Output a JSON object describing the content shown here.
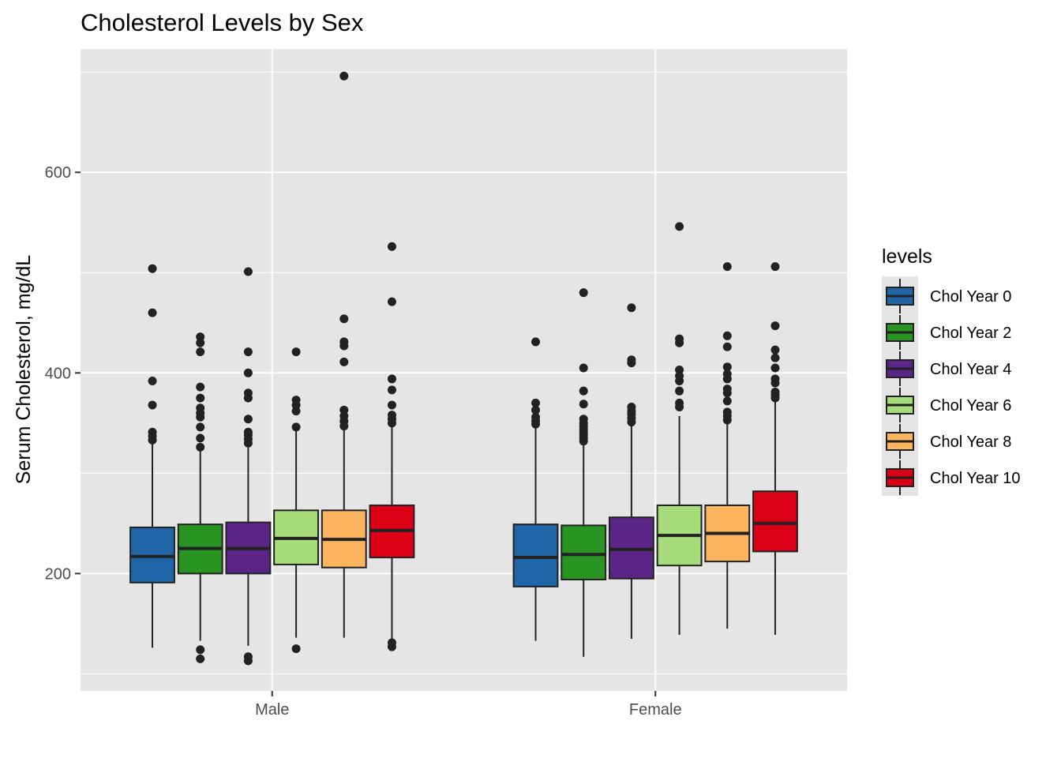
{
  "chart_data": {
    "type": "boxplot",
    "title": "Cholesterol Levels by Sex",
    "xlabel": "",
    "ylabel": "Serum Cholesterol, mg/dL",
    "ylim": [
      83,
      723
    ],
    "yticks": [
      200,
      400,
      600
    ],
    "y_minor_gridlines": [
      100,
      300,
      500,
      700
    ],
    "grid": true,
    "categories": [
      "Male",
      "Female"
    ],
    "legend": {
      "title": "levels",
      "position": "right"
    },
    "series": [
      {
        "name": "Chol Year 0",
        "color": "#1F65A8",
        "boxes": [
          {
            "whisker_low": 126,
            "q1": 191,
            "median": 217,
            "q3": 246,
            "whisker_high": 330,
            "outliers": [
              333,
              337,
              341,
              368,
              392,
              460,
              504
            ]
          },
          {
            "whisker_low": 133,
            "q1": 187,
            "median": 216,
            "q3": 249,
            "whisker_high": 346,
            "outliers": [
              349,
              352,
              356,
              363,
              370,
              431
            ]
          }
        ]
      },
      {
        "name": "Chol Year 2",
        "color": "#2A9422",
        "boxes": [
          {
            "whisker_low": 133,
            "q1": 200,
            "median": 225,
            "q3": 249,
            "whisker_high": 322,
            "outliers": [
              115,
              124,
              326,
              335,
              346,
              356,
              360,
              365,
              375,
              386,
              421,
              430,
              436
            ]
          },
          {
            "whisker_low": 117,
            "q1": 194,
            "median": 219,
            "q3": 248,
            "whisker_high": 329,
            "outliers": [
              332,
              335,
              338,
              341,
              344,
              347,
              350,
              354,
              369,
              382,
              405,
              480
            ]
          }
        ]
      },
      {
        "name": "Chol Year 4",
        "color": "#5A2587",
        "boxes": [
          {
            "whisker_low": 128,
            "q1": 200,
            "median": 225,
            "q3": 251,
            "whisker_high": 328,
            "outliers": [
              113,
              117,
              330,
              334,
              338,
              341,
              354,
              375,
              380,
              400,
              421,
              501
            ]
          },
          {
            "whisker_low": 135,
            "q1": 195,
            "median": 224,
            "q3": 256,
            "whisker_high": 348,
            "outliers": [
              351,
              355,
              359,
              362,
              366,
              410,
              413,
              465
            ]
          }
        ]
      },
      {
        "name": "Chol Year 6",
        "color": "#A6DC7A",
        "boxes": [
          {
            "whisker_low": 136,
            "q1": 209,
            "median": 235,
            "q3": 263,
            "whisker_high": 343,
            "outliers": [
              125,
              346,
              362,
              368,
              373,
              421
            ]
          },
          {
            "whisker_low": 139,
            "q1": 208,
            "median": 238,
            "q3": 268,
            "whisker_high": 357,
            "outliers": [
              366,
              370,
              382,
              392,
              397,
              403,
              430,
              434,
              546
            ]
          }
        ]
      },
      {
        "name": "Chol Year 8",
        "color": "#FCB45F",
        "boxes": [
          {
            "whisker_low": 136,
            "q1": 206,
            "median": 234,
            "q3": 263,
            "whisker_high": 343,
            "outliers": [
              347,
              352,
              357,
              363,
              411,
              427,
              431,
              454,
              696
            ]
          },
          {
            "whisker_low": 145,
            "q1": 212,
            "median": 240,
            "q3": 268,
            "whisker_high": 350,
            "outliers": [
              353,
              357,
              361,
              372,
              380,
              384,
              394,
              399,
              406,
              426,
              437,
              506
            ]
          }
        ]
      },
      {
        "name": "Chol Year 10",
        "color": "#DB0015",
        "boxes": [
          {
            "whisker_low": 133,
            "q1": 216,
            "median": 243,
            "q3": 268,
            "whisker_high": 347,
            "outliers": [
              127,
              131,
              350,
              354,
              358,
              368,
              383,
              394,
              471,
              526
            ]
          },
          {
            "whisker_low": 139,
            "q1": 222,
            "median": 250,
            "q3": 282,
            "whisker_high": 372,
            "outliers": [
              375,
              378,
              381,
              390,
              394,
              405,
              415,
              423,
              447,
              506
            ]
          }
        ]
      }
    ]
  }
}
